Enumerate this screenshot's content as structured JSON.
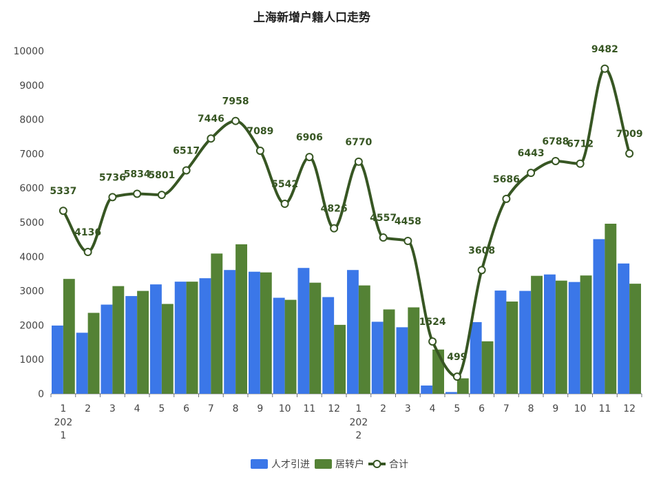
{
  "chart_data": {
    "type": "bar",
    "title": "上海新增户籍人口走势",
    "categories": [
      "1",
      "2",
      "3",
      "4",
      "5",
      "6",
      "7",
      "8",
      "9",
      "10",
      "11",
      "12",
      "1",
      "2",
      "3",
      "4",
      "5",
      "6",
      "7",
      "8",
      "9",
      "10",
      "11",
      "12"
    ],
    "year_labels": [
      {
        "index": 0,
        "text": "2021",
        "lines": [
          "202",
          "1"
        ]
      },
      {
        "index": 12,
        "text": "2022",
        "lines": [
          "202",
          "2"
        ]
      }
    ],
    "y_ticks": [
      "0",
      "1000",
      "2000",
      "3000",
      "4000",
      "5000",
      "6000",
      "7000",
      "8000",
      "9000",
      "10000"
    ],
    "ylim": [
      0,
      10000
    ],
    "series": [
      {
        "name": "人才引进",
        "type": "bar",
        "color": "#3b77e8",
        "values": [
          1990,
          1780,
          2600,
          2850,
          3190,
          3270,
          3370,
          3610,
          3560,
          2800,
          3670,
          2820,
          3610,
          2100,
          1940,
          240,
          50,
          2090,
          3010,
          3000,
          3480,
          3260,
          4510,
          3800
        ]
      },
      {
        "name": "居转户",
        "type": "bar",
        "color": "#548235",
        "values": [
          3350,
          2360,
          3140,
          3000,
          2620,
          3270,
          4090,
          4360,
          3540,
          2740,
          3240,
          2010,
          3160,
          2460,
          2520,
          1290,
          450,
          1530,
          2690,
          3440,
          3300,
          3450,
          4960,
          3210
        ]
      },
      {
        "name": "合计",
        "type": "line",
        "color": "#375623",
        "smooth": true,
        "show_labels": true,
        "values": [
          5337,
          4136,
          5736,
          5834,
          5801,
          6517,
          7446,
          7958,
          7089,
          5542,
          6906,
          4826,
          6770,
          4557,
          4458,
          1524,
          499,
          3608,
          5686,
          6443,
          6788,
          6712,
          9482,
          7009
        ]
      }
    ],
    "legend_position": "bottom-center",
    "grid": false
  }
}
